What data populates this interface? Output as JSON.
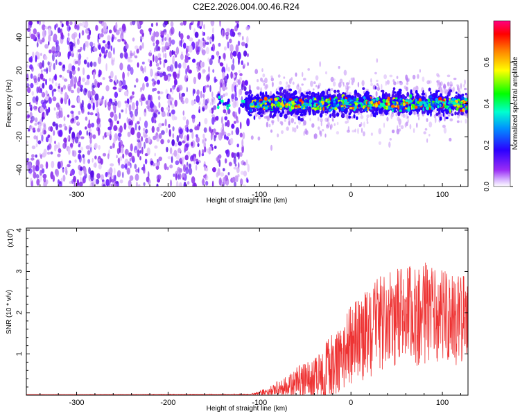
{
  "title": "C2E2.2026.004.00.46.R24",
  "charts": [
    {
      "type": "heatmap",
      "xlabel": "Height of straight line (km)",
      "ylabel": "Frequency (Hz)",
      "xlim": [
        -355,
        128
      ],
      "ylim": [
        -50,
        50
      ],
      "xticks": [
        -300,
        -200,
        -100,
        0,
        100
      ],
      "yticks": [
        -40,
        -20,
        0,
        20,
        40
      ],
      "noise_region_x": [
        -355,
        -110
      ],
      "signal_band": {
        "x": [
          -145,
          128
        ],
        "center_hz": 0,
        "halfwidth_hz": 8
      }
    },
    {
      "type": "line",
      "xlabel": "Height of straight line (km)",
      "ylabel": "SNR (10 * v/v)",
      "exponent_label": "(x10",
      "exponent_power": "4",
      "exponent_close": ")",
      "xlim": [
        -355,
        128
      ],
      "ylim": [
        0,
        4.05
      ],
      "xticks": [
        -300,
        -200,
        -100,
        0,
        100
      ],
      "yticks": [
        1,
        2,
        3,
        4
      ],
      "series_color": "#ee3333",
      "envelope": {
        "x": [
          -355,
          -110,
          -100,
          -90,
          -80,
          -70,
          -60,
          -50,
          -40,
          -30,
          -20,
          -10,
          0,
          10,
          20,
          30,
          40,
          50,
          60,
          70,
          80,
          90,
          100,
          110,
          120,
          128
        ],
        "mean": [
          0.02,
          0.02,
          0.05,
          0.1,
          0.15,
          0.2,
          0.28,
          0.35,
          0.45,
          0.55,
          0.7,
          0.9,
          1.2,
          1.4,
          1.55,
          1.7,
          1.8,
          1.9,
          1.9,
          1.95,
          2.0,
          1.95,
          1.9,
          1.85,
          1.8,
          1.8
        ],
        "spread": [
          0.0,
          0.01,
          0.05,
          0.12,
          0.2,
          0.3,
          0.4,
          0.5,
          0.6,
          0.7,
          0.8,
          0.9,
          1.0,
          1.1,
          1.15,
          1.2,
          1.2,
          1.2,
          1.2,
          1.25,
          1.25,
          1.2,
          1.15,
          1.1,
          1.1,
          1.1
        ]
      }
    }
  ],
  "colorbar": {
    "label": "Normalized spectral amplitude",
    "range": [
      0,
      0.8
    ],
    "ticks": [
      "0.0",
      "0.2",
      "0.4",
      "0.6"
    ],
    "tick_values": [
      0.0,
      0.2,
      0.4,
      0.6
    ],
    "stops": [
      "#ffffff",
      "#9a2cf5",
      "#2b00ff",
      "#00a0ff",
      "#00ffd0",
      "#00ff00",
      "#ffff00",
      "#ff8000",
      "#ff0000",
      "#ff0080"
    ]
  }
}
